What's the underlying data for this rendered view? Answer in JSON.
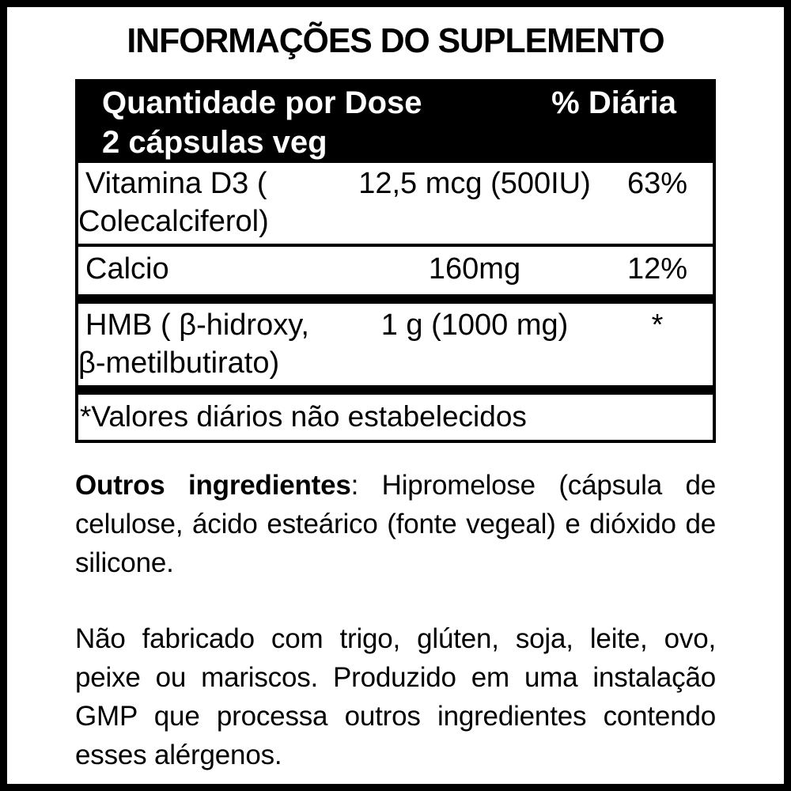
{
  "colors": {
    "background": "#ffffff",
    "text": "#000000",
    "table_border": "#000000",
    "table_header_bg": "#000000",
    "table_header_text": "#ffffff"
  },
  "title": "INFORMAÇÕES DO SUPLEMENTO",
  "table": {
    "header": {
      "amount_label": "Quantidade por Dose",
      "serving": "2 cápsulas veg",
      "daily_label": "% Diária"
    },
    "rows": [
      {
        "name_line1": "Vitamina D3 (",
        "name_line2": "Colecalciferol)",
        "amount": "12,5 mcg (500IU)",
        "daily": "63%"
      },
      {
        "name_line1": "Calcio",
        "amount": "160mg",
        "daily": "12%"
      },
      {
        "name_line1": "HMB ( β-hidroxy,",
        "name_line2": "β-metilbutirato)",
        "amount": "1 g (1000 mg)",
        "daily": "*"
      }
    ],
    "footnote": "*Valores diários não estabelecidos"
  },
  "other_ingredients": {
    "label": "Outros ingredientes",
    "separator": ": ",
    "text": "Hipromelose (cápsula de celulose, ácido esteárico (fonte vegeal) e dióxido de silicone."
  },
  "allergen_notice": "Não fabricado com trigo, glúten, soja, leite, ovo, peixe ou mariscos. Produzido em uma instalação GMP que processa outros ingredientes contendo esses alérgenos."
}
